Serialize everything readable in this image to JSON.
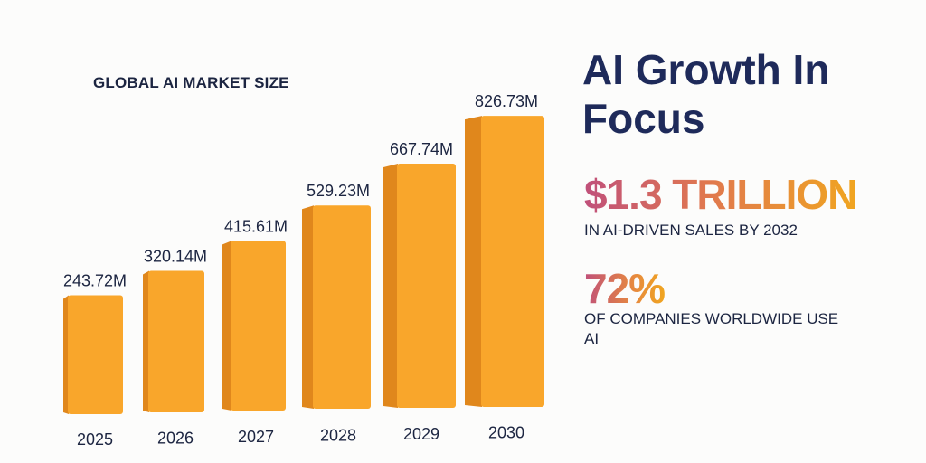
{
  "chart_data": {
    "type": "bar",
    "title": "GLOBAL AI MARKET SIZE",
    "categories": [
      "2025",
      "2026",
      "2027",
      "2028",
      "2029",
      "2030"
    ],
    "values": [
      243.72,
      320.14,
      415.61,
      529.23,
      667.74,
      826.73
    ],
    "data_labels": [
      "243.72M",
      "320.14M",
      "415.61M",
      "529.23M",
      "667.74M",
      "826.73M"
    ],
    "unit": "M",
    "xlabel": "",
    "ylabel": "",
    "ylim": [
      0,
      900
    ],
    "grid": false,
    "bar_color": "#f9a62b",
    "bar_side_color": "#e0871c"
  },
  "headline": "AI Growth In Focus",
  "stats": [
    {
      "value": "$1.3 TRILLION",
      "caption": "IN AI-DRIVEN SALES BY 2032"
    },
    {
      "value": "72%",
      "caption": "OF COMPANIES WORLDWIDE USE AI"
    }
  ]
}
